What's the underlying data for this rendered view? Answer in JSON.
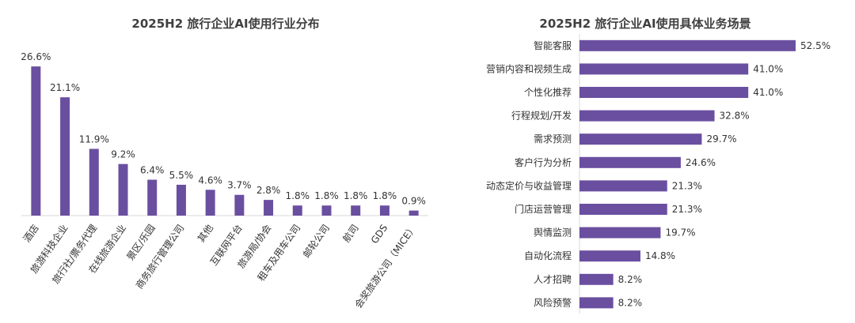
{
  "chart_data": [
    {
      "type": "bar",
      "orientation": "vertical",
      "title": "2025H2 旅行企业AI使用行业分布",
      "categories": [
        "酒店",
        "旅游科技企业",
        "旅行社/票务代理",
        "在线旅游企业",
        "景区/乐园",
        "商务旅行管理公司",
        "其他",
        "互联网平台",
        "旅游局/协会",
        "租车及用车公司",
        "邮轮公司",
        "航司",
        "GDS",
        "会奖旅游公司（MICE）"
      ],
      "values": [
        26.6,
        21.1,
        11.9,
        9.2,
        6.4,
        5.5,
        4.6,
        3.7,
        2.8,
        1.8,
        1.8,
        1.8,
        1.8,
        0.9
      ],
      "labels": [
        "26.6%",
        "21.1%",
        "11.9%",
        "9.2%",
        "6.4%",
        "5.5%",
        "4.6%",
        "3.7%",
        "2.8%",
        "1.8%",
        "1.8%",
        "1.8%",
        "1.8%",
        "0.9%"
      ],
      "color": "#6a4fa0",
      "grid": false
    },
    {
      "type": "bar",
      "orientation": "horizontal",
      "title": "2025H2 旅行企业AI使用具体业务场景",
      "categories": [
        "智能客服",
        "营销内容和视频生成",
        "个性化推荐",
        "行程规划/开发",
        "需求预测",
        "客户行为分析",
        "动态定价与收益管理",
        "门店运营管理",
        "舆情监测",
        "自动化流程",
        "人才招聘",
        "风险预警"
      ],
      "values": [
        52.5,
        41.0,
        41.0,
        32.8,
        29.7,
        24.6,
        21.3,
        21.3,
        19.7,
        14.8,
        8.2,
        8.2
      ],
      "labels": [
        "52.5%",
        "41.0%",
        "41.0%",
        "32.8%",
        "29.7%",
        "24.6%",
        "21.3%",
        "21.3%",
        "19.7%",
        "14.8%",
        "8.2%",
        "8.2%"
      ],
      "color": "#6a4fa0",
      "grid": false
    }
  ]
}
